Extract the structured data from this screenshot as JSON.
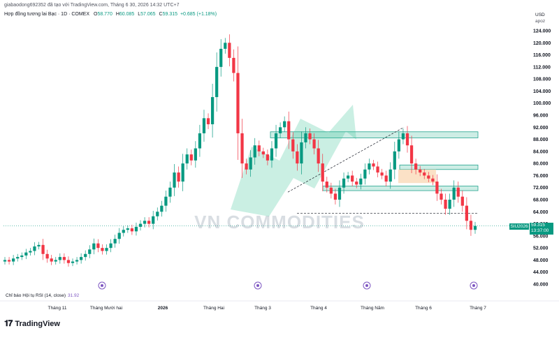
{
  "header": {
    "publish_line": "giabaodong692352 đã tạo với TradingView.com, Tháng 6 30, 2026 14:32 UTC+7",
    "instrument": "Hợp đồng tương lai Bạc · 1D · COMEX",
    "o_label": "O",
    "o_value": "58.770",
    "h_label": "H",
    "h_value": "60.085",
    "l_label": "L",
    "l_value": "57.065",
    "c_label": "C",
    "c_value": "59.315",
    "change": "+0.685 (+1.18%)"
  },
  "currency": {
    "code": "USD",
    "unit": "apoz"
  },
  "price_tag": {
    "symbol": "SIU2026",
    "price": "59.315",
    "countdown": "13:37:00"
  },
  "watermark": "VN COMMODITIES",
  "rsi": {
    "label": "Chỉ báo Hội tụ RSI (14, close)",
    "value": "31.92"
  },
  "brand": "TradingView",
  "colors": {
    "up": "#089981",
    "down": "#f23645",
    "zone": "#c8ece3",
    "zone_border": "#089981",
    "orange_zone": "#fad9b8",
    "rsi_icon": "#7e57c2"
  },
  "chart_data": {
    "type": "candlestick",
    "y_ticks": [
      "124.000",
      "120.000",
      "116.000",
      "112.000",
      "108.000",
      "104.000",
      "100.000",
      "96.000",
      "92.000",
      "88.000",
      "84.000",
      "80.000",
      "76.000",
      "72.000",
      "68.000",
      "64.000",
      "60.000",
      "56.000",
      "52.000",
      "48.000",
      "44.000",
      "40.000"
    ],
    "ylim": [
      40,
      124
    ],
    "x_ticks": [
      "Tháng 11",
      "Tháng Mười hai",
      "2026",
      "Tháng Hai",
      "Tháng 3",
      "Tháng 4",
      "Tháng Năm",
      "Tháng 6",
      "Tháng 7"
    ],
    "close_path": [
      48,
      47.5,
      48.5,
      49,
      49.5,
      50.5,
      51,
      52.5,
      53,
      50,
      48.5,
      47.5,
      48,
      49,
      48,
      47,
      47.5,
      48,
      49,
      50,
      51.5,
      53.5,
      52,
      51,
      52,
      53.5,
      55,
      57,
      58,
      58.5,
      57.5,
      59,
      60,
      61,
      60,
      62.5,
      64,
      66,
      69,
      72,
      77,
      74,
      80,
      83,
      81,
      85,
      90,
      95,
      93,
      102,
      112,
      118,
      120,
      115,
      110,
      90,
      80,
      78,
      82,
      86,
      84,
      83,
      81,
      85,
      90,
      92,
      94,
      88,
      84,
      80,
      87,
      90,
      88,
      85,
      80,
      74,
      72,
      70,
      68,
      72,
      75,
      76,
      74,
      73,
      75,
      78,
      80,
      79,
      77,
      76,
      74,
      78,
      84,
      88,
      90,
      86,
      80,
      78,
      77,
      76,
      75,
      74,
      70,
      68,
      65,
      68,
      72,
      69,
      66,
      61,
      58,
      59.3
    ],
    "levels": {
      "current_price": 59.315,
      "dashed_support": 63.5
    },
    "zones": [
      {
        "from": 88.5,
        "to": 90.5
      },
      {
        "from": 78,
        "to": 79.5
      },
      {
        "from": 71,
        "to": 72.5
      },
      {
        "from": 73.5,
        "to": 78
      }
    ],
    "title": "",
    "xlabel": "",
    "ylabel": ""
  }
}
